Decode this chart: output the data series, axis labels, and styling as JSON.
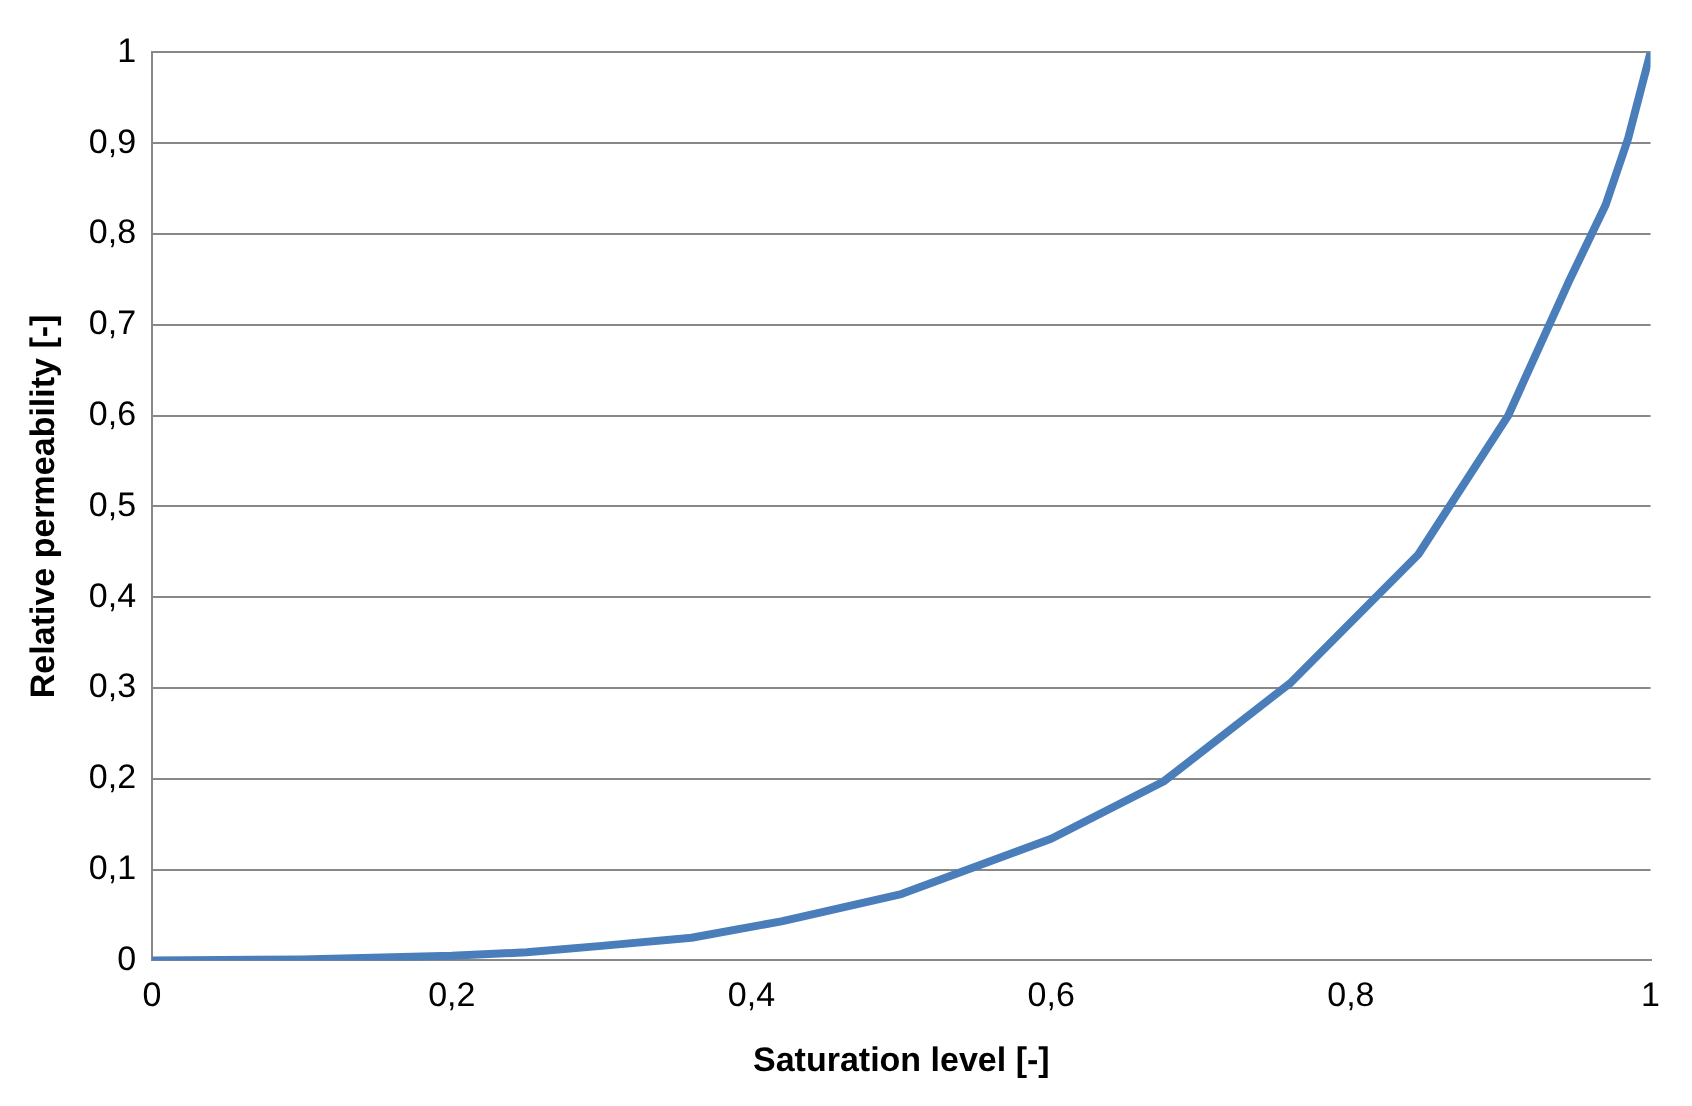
{
  "chart_data": {
    "type": "line",
    "xlabel": "Saturation level [-]",
    "ylabel": "Relative permeability [-]",
    "x": [
      0,
      0.1,
      0.2,
      0.25,
      0.3,
      0.36,
      0.42,
      0.5,
      0.6,
      0.675,
      0.76,
      0.845,
      0.905,
      0.945,
      0.97,
      0.985,
      1
    ],
    "series": [
      {
        "color": "#4a7ebb",
        "values": [
          0,
          0.001,
          0.005,
          0.009,
          0.016,
          0.025,
          0.043,
          0.073,
          0.134,
          0.197,
          0.306,
          0.447,
          0.6,
          0.746,
          0.832,
          0.905,
          1
        ]
      }
    ],
    "xlim": [
      0,
      1
    ],
    "ylim": [
      0,
      1
    ],
    "xticks": [
      0,
      {
        "value": 0.2,
        "label": "0,2"
      },
      {
        "value": 0.4,
        "label": "0,4"
      },
      {
        "value": 0.6,
        "label": "0,6"
      },
      {
        "value": 0.8,
        "label": "0,8"
      },
      1
    ],
    "yticks": [
      0,
      {
        "value": 0.1,
        "label": "0,1"
      },
      {
        "value": 0.2,
        "label": "0,2"
      },
      {
        "value": 0.3,
        "label": "0,3"
      },
      {
        "value": 0.4,
        "label": "0,4"
      },
      {
        "value": 0.5,
        "label": "0,5"
      },
      {
        "value": 0.6,
        "label": "0,6"
      },
      {
        "value": 0.7,
        "label": "0,7"
      },
      {
        "value": 0.8,
        "label": "0,8"
      },
      {
        "value": 0.9,
        "label": "0,9"
      },
      1
    ],
    "grid": "y",
    "legend": false,
    "marker": "none",
    "line_style": "solid"
  }
}
